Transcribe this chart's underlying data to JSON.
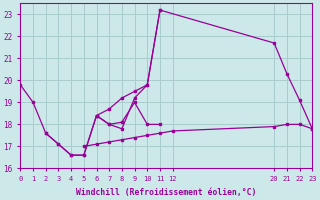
{
  "background_color": "#cce8e8",
  "grid_color": "#aacccc",
  "line_color": "#990099",
  "xlabel": "Windchill (Refroidissement éolien,°C)",
  "xlim": [
    0,
    23
  ],
  "ylim": [
    16,
    23.5
  ],
  "yticks": [
    16,
    17,
    18,
    19,
    20,
    21,
    22,
    23
  ],
  "xticks": [
    0,
    1,
    2,
    3,
    4,
    5,
    6,
    7,
    8,
    9,
    10,
    11,
    12,
    20,
    21,
    22,
    23
  ],
  "series": [
    {
      "x": [
        0,
        1,
        2,
        3,
        4,
        5,
        6,
        7,
        8,
        9,
        10,
        11
      ],
      "y": [
        19.8,
        19.0,
        17.6,
        17.1,
        16.6,
        16.6,
        18.4,
        18.0,
        17.8,
        19.2,
        19.8,
        23.2
      ]
    },
    {
      "x": [
        6,
        7,
        8,
        9,
        10,
        11,
        20,
        21,
        22,
        23
      ],
      "y": [
        18.4,
        18.7,
        19.2,
        19.5,
        19.8,
        23.2,
        21.7,
        20.3,
        19.1,
        17.8
      ]
    },
    {
      "x": [
        5,
        6,
        7,
        8,
        9,
        10,
        11,
        12,
        20,
        21,
        22,
        23
      ],
      "y": [
        17.0,
        17.1,
        17.2,
        17.3,
        17.4,
        17.5,
        17.6,
        17.7,
        17.9,
        18.0,
        18.0,
        17.8
      ]
    },
    {
      "x": [
        2,
        3,
        4,
        5,
        6,
        7,
        8,
        9,
        10,
        11
      ],
      "y": [
        17.6,
        17.1,
        16.6,
        16.6,
        18.4,
        18.0,
        18.1,
        19.0,
        18.0,
        18.0
      ]
    }
  ]
}
